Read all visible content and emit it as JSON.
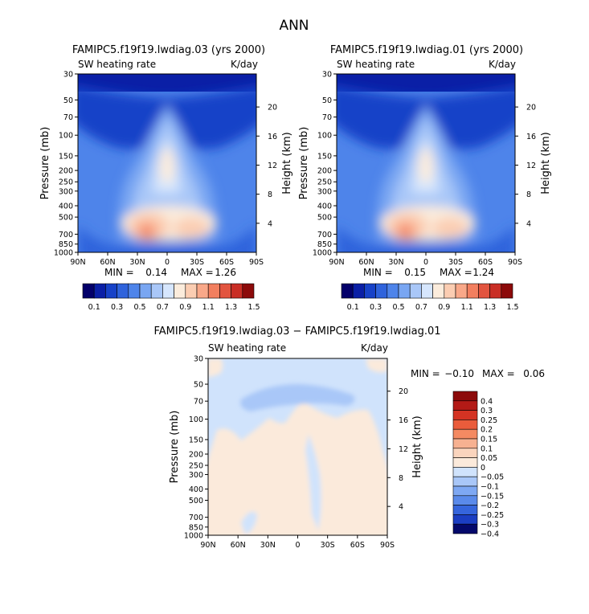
{
  "page_title": "ANN",
  "panels": [
    {
      "title": "FAMIPC5.f19f19.lwdiag.03 (yrs 2000)",
      "left_label": "SW heating rate",
      "right_label": "K/day",
      "min": "0.14",
      "max": "1.26"
    },
    {
      "title": "FAMIPC5.f19f19.lwdiag.01 (yrs 2000)",
      "left_label": "SW heating rate",
      "right_label": "K/day",
      "min": "0.15",
      "max": "1.24"
    },
    {
      "title": "FAMIPC5.f19f19.lwdiag.03 − FAMIPC5.f19f19.lwdiag.01",
      "left_label": "SW heating rate",
      "right_label": "K/day",
      "min": "−0.10",
      "max": "0.06"
    }
  ],
  "min_label": "MIN =",
  "max_label": "MAX =",
  "chart_data": [
    {
      "type": "heatmap",
      "title": "FAMIPC5.f19f19.lwdiag.03 (yrs 2000)",
      "variable": "SW heating rate",
      "units": "K/day",
      "ylabel": "Pressure (mb)",
      "y2label": "Height (km)",
      "xticks": [
        "90N",
        "60N",
        "30N",
        "0",
        "30S",
        "60S",
        "90S"
      ],
      "yticks": [
        "30",
        "50",
        "70",
        "100",
        "150",
        "200",
        "250",
        "300",
        "400",
        "500",
        "700",
        "850",
        "1000"
      ],
      "y2ticks": [
        "20",
        "16",
        "12",
        "8",
        "4"
      ],
      "colorbar_levels": [
        "0.1",
        "0.3",
        "0.5",
        "0.7",
        "0.9",
        "1.1",
        "1.3",
        "1.5"
      ],
      "min": 0.14,
      "max": 1.26
    },
    {
      "type": "heatmap",
      "title": "FAMIPC5.f19f19.lwdiag.01 (yrs 2000)",
      "variable": "SW heating rate",
      "units": "K/day",
      "ylabel": "Pressure (mb)",
      "y2label": "Height (km)",
      "xticks": [
        "90N",
        "60N",
        "30N",
        "0",
        "30S",
        "60S",
        "90S"
      ],
      "yticks": [
        "30",
        "50",
        "70",
        "100",
        "150",
        "200",
        "250",
        "300",
        "400",
        "500",
        "700",
        "850",
        "1000"
      ],
      "y2ticks": [
        "20",
        "16",
        "12",
        "8",
        "4"
      ],
      "colorbar_levels": [
        "0.1",
        "0.3",
        "0.5",
        "0.7",
        "0.9",
        "1.1",
        "1.3",
        "1.5"
      ],
      "min": 0.15,
      "max": 1.24
    },
    {
      "type": "heatmap",
      "title": "FAMIPC5.f19f19.lwdiag.03 − FAMIPC5.f19f19.lwdiag.01",
      "variable": "SW heating rate",
      "units": "K/day",
      "ylabel": "Pressure (mb)",
      "y2label": "Height (km)",
      "xticks": [
        "90N",
        "60N",
        "30N",
        "0",
        "30S",
        "60S",
        "90S"
      ],
      "yticks": [
        "30",
        "50",
        "70",
        "100",
        "150",
        "200",
        "250",
        "300",
        "400",
        "500",
        "700",
        "850",
        "1000"
      ],
      "y2ticks": [
        "20",
        "16",
        "12",
        "8",
        "4"
      ],
      "colorbar_levels": [
        "0.4",
        "0.3",
        "0.25",
        "0.2",
        "0.15",
        "0.1",
        "0.05",
        "0",
        "−0.05",
        "−0.1",
        "−0.15",
        "−0.2",
        "−0.25",
        "−0.3",
        "−0.4"
      ],
      "min": -0.1,
      "max": 0.06
    }
  ],
  "colors": {
    "abs": [
      "#03006a",
      "#0a1fa6",
      "#1742c8",
      "#2f63dc",
      "#4e84ea",
      "#79a6f2",
      "#a9c7f8",
      "#d6e6fd",
      "#fbecdc",
      "#fbcdb2",
      "#f9a889",
      "#f27f5f",
      "#e2543f",
      "#c92e25",
      "#8c0a0a"
    ],
    "diff": [
      "#8c0a0a",
      "#b31a16",
      "#d43323",
      "#ea5c3b",
      "#f48a62",
      "#f7b191",
      "#fad4bd",
      "#fbeadb",
      "#d0e3fc",
      "#a9c7f8",
      "#7ea8f3",
      "#5a8aea",
      "#3565dc",
      "#1b3ec2",
      "#04096b"
    ]
  }
}
